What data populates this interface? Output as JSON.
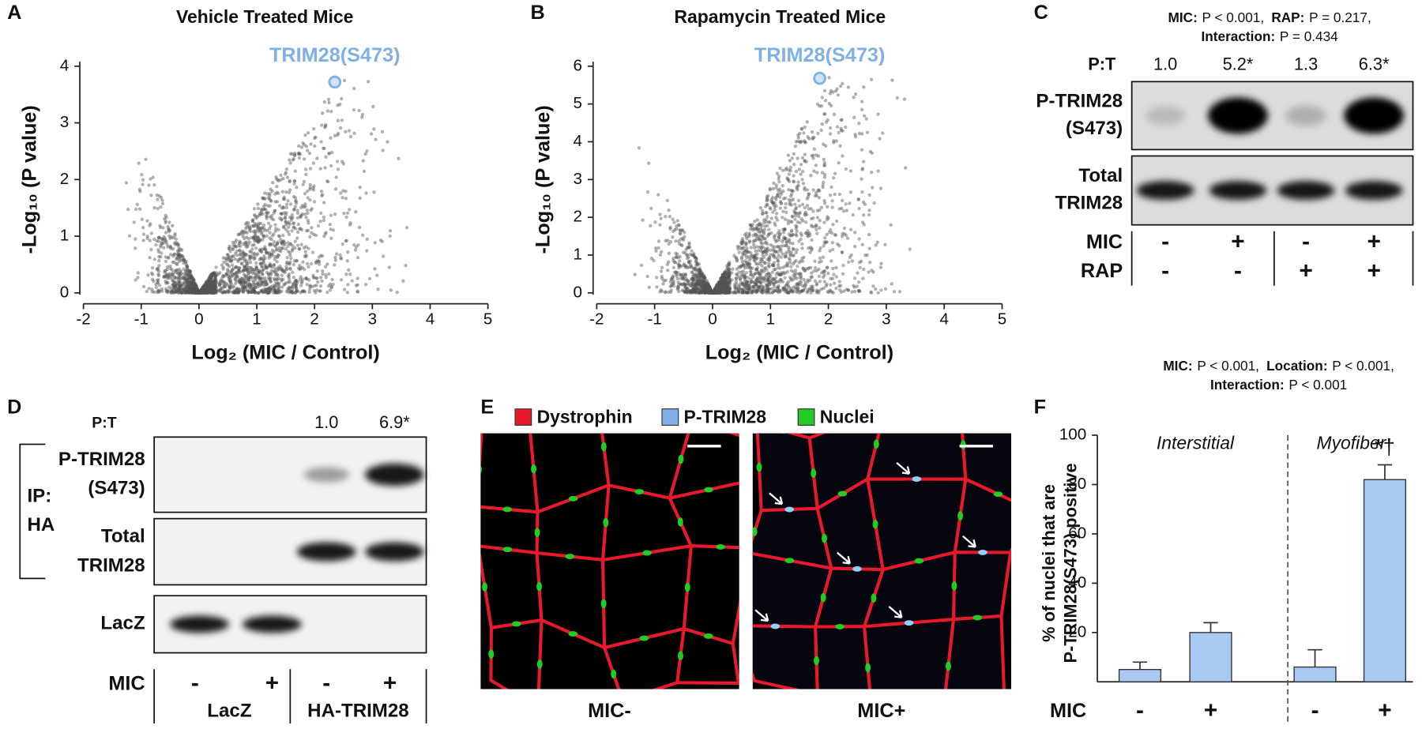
{
  "panel_labels": [
    "A",
    "B",
    "C",
    "D",
    "E",
    "F"
  ],
  "chart_data": [
    {
      "type": "scatter",
      "title": "Vehicle Treated Mice",
      "x_label": "Log₂ (MIC / Control)",
      "y_label": "-Log₁₀ (P value)",
      "xlim": [
        -2,
        5
      ],
      "ylim": [
        0,
        4
      ],
      "xticks": [
        -2,
        -1,
        0,
        1,
        2,
        3,
        4,
        5
      ],
      "yticks": [
        0,
        1,
        2,
        3,
        4
      ],
      "highlight": {
        "label": "TRIM28(S473)",
        "x": 2.35,
        "y": 3.72,
        "color": "#7fb0e6"
      },
      "color": "#555555"
    },
    {
      "type": "scatter",
      "title": "Rapamycin Treated Mice",
      "x_label": "Log₂ (MIC / Control)",
      "y_label": "-Log₁₀ (P value)",
      "xlim": [
        -2,
        5
      ],
      "ylim": [
        0,
        6
      ],
      "xticks": [
        -2,
        -1,
        0,
        1,
        2,
        3,
        4,
        5
      ],
      "yticks": [
        0,
        1,
        2,
        3,
        4,
        5,
        6
      ],
      "highlight": {
        "label": "TRIM28(S473)",
        "x": 1.85,
        "y": 5.68,
        "color": "#7fb0e6"
      },
      "color": "#555555"
    },
    {
      "type": "bar",
      "stats": [
        {
          "label": "MIC:",
          "text": "P < 0.001,"
        },
        {
          "label": "Location:",
          "text": "P < 0.001,"
        },
        {
          "label": "Interaction:",
          "text": "P < 0.001"
        }
      ],
      "y_label": [
        "% of nuclei that are",
        "P-TRIM28(S473) positive"
      ],
      "groups": [
        "Interstitial",
        "Myofiber"
      ],
      "category_axis_label": "MIC",
      "categories": [
        "-",
        "+",
        "-",
        "+"
      ],
      "values": [
        5,
        20,
        6,
        82
      ],
      "errors": [
        3,
        4,
        7,
        6
      ],
      "annotation": "*†",
      "ylim": [
        0,
        100
      ],
      "yticks": [
        20,
        40,
        60,
        80,
        100
      ],
      "color": "#a9c9f3"
    }
  ],
  "blot_c": {
    "stats": [
      {
        "label": "MIC:",
        "text": "P < 0.001,"
      },
      {
        "label": "RAP:",
        "text": "P = 0.217,"
      },
      {
        "label": "Interaction:",
        "text": "P = 0.434"
      }
    ],
    "ratio_label": "P:T",
    "ratios": [
      "1.0",
      "5.2*",
      "1.3",
      "6.3*"
    ],
    "blots": [
      [
        "P-TRIM28",
        "(S473)"
      ],
      [
        "Total",
        "TRIM28"
      ]
    ],
    "treatments": [
      {
        "name": "MIC",
        "signs": [
          "-",
          "+",
          "-",
          "+"
        ]
      },
      {
        "name": "RAP",
        "signs": [
          "-",
          "-",
          "+",
          "+"
        ]
      }
    ]
  },
  "blot_d": {
    "ratio_label": "P:T",
    "ratios": [
      "1.0",
      "6.9*"
    ],
    "ip_label": [
      "IP:",
      "HA"
    ],
    "blots": [
      [
        "P-TRIM28",
        "(S473)"
      ],
      [
        "Total",
        "TRIM28"
      ],
      [
        "LacZ"
      ]
    ],
    "treatment": {
      "name": "MIC",
      "signs": [
        "-",
        "+",
        "-",
        "+"
      ]
    },
    "groups": [
      "LacZ",
      "HA-TRIM28"
    ]
  },
  "image_e": {
    "legend": [
      {
        "name": "Dystrophin",
        "color": "#e8192c"
      },
      {
        "name": "P-TRIM28",
        "color": "#7fb0e6"
      },
      {
        "name": "Nuclei",
        "color": "#22cc22"
      }
    ],
    "panels": [
      "MIC-",
      "MIC+"
    ]
  }
}
